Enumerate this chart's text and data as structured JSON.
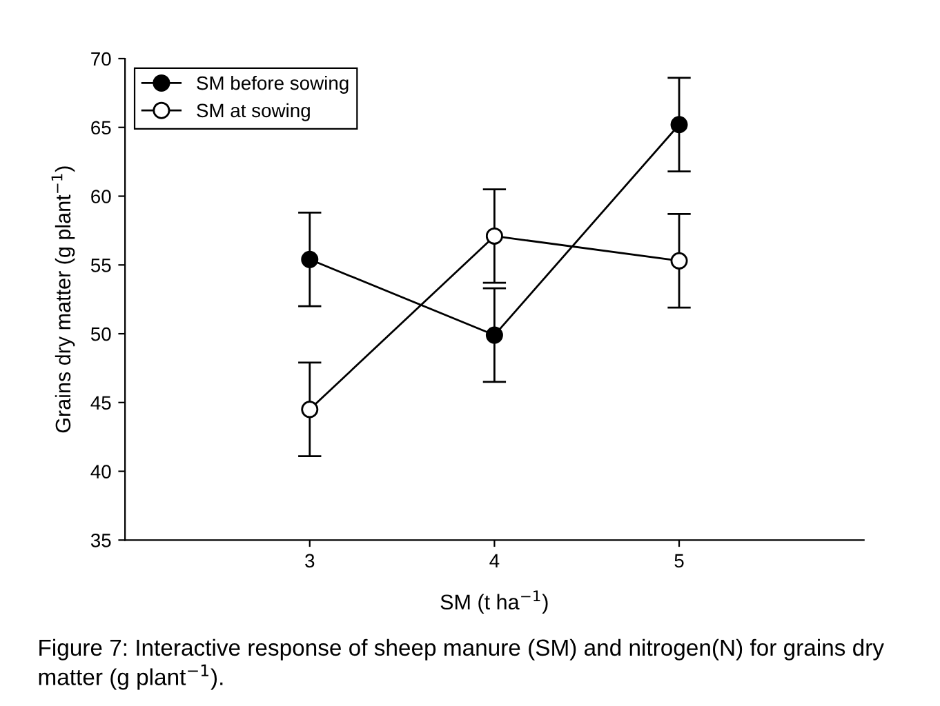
{
  "chart_data": {
    "type": "line",
    "xlabel": "SM (t ha$^{−1}$)",
    "ylabel": "Grains dry matter (g plant$^{−1}$)",
    "x": [
      3,
      4,
      5
    ],
    "xlim": [
      2,
      6
    ],
    "xticks": [
      3,
      4,
      5
    ],
    "ylim": [
      35,
      70
    ],
    "yticks": [
      35,
      40,
      45,
      50,
      55,
      60,
      65,
      70
    ],
    "series": [
      {
        "name": "SM before sowing",
        "color": "#000000",
        "values": [
          55.4,
          49.9,
          65.2
        ],
        "errors": [
          3.4,
          3.4,
          3.4
        ]
      },
      {
        "name": "SM at sowing",
        "color": "#ffffff",
        "values": [
          44.5,
          57.1,
          55.3
        ],
        "errors": [
          3.4,
          3.4,
          3.4
        ]
      }
    ],
    "marker": "circle",
    "line_style": "solid",
    "grid": false,
    "legend": "top left",
    "annotations": [
      "Figure 7: Interactive response of sheep manure (SM) and nitrogen(N) for grains dry matter (g plant$^{−1}$)."
    ]
  }
}
